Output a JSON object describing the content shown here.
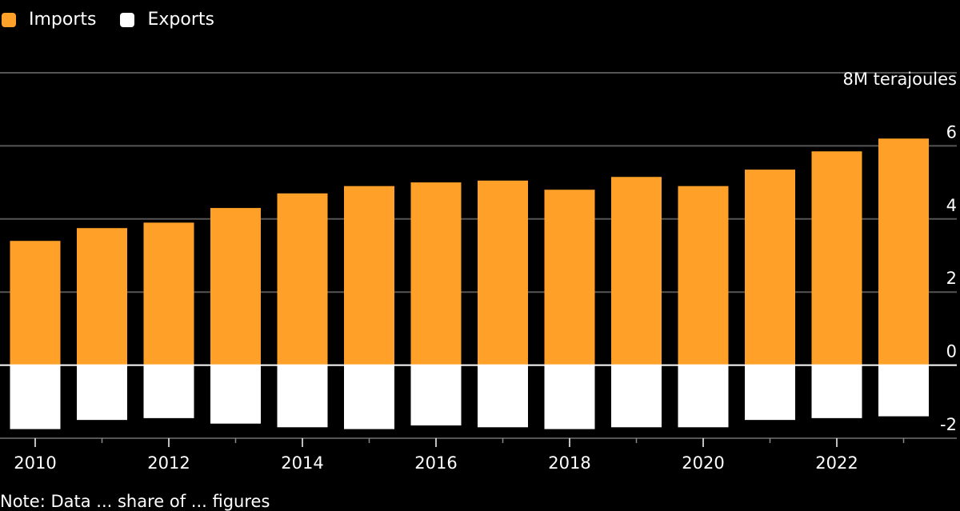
{
  "legend": {
    "items": [
      {
        "label": "Imports",
        "color": "#FFA028"
      },
      {
        "label": "Exports",
        "color": "#FFFFFF"
      }
    ]
  },
  "note": "Note: Data ... share of ... figures",
  "colors": {
    "background": "#000000",
    "imports": "#FFA028",
    "exports": "#FFFFFF",
    "gridline": "#555555",
    "zeroline": "#FFFFFF"
  },
  "chart_data": {
    "type": "bar",
    "title": "",
    "xlabel": "",
    "ylabel": "",
    "unit_label": "8M terajoules",
    "categories": [
      "2010",
      "2011",
      "2012",
      "2013",
      "2014",
      "2015",
      "2016",
      "2017",
      "2018",
      "2019",
      "2020",
      "2021",
      "2022",
      "2023"
    ],
    "x_tick_labels": [
      "2010",
      "2012",
      "2014",
      "2016",
      "2018",
      "2020",
      "2022"
    ],
    "y_tick_labels": [
      "-2",
      "0",
      "2",
      "4",
      "6"
    ],
    "y_ticks": [
      -2,
      0,
      2,
      4,
      6,
      8
    ],
    "ylim": [
      -2,
      8
    ],
    "grid": true,
    "legend_position": "top-left",
    "series": [
      {
        "name": "Imports",
        "values": [
          3.4,
          3.75,
          3.9,
          4.3,
          4.7,
          4.9,
          5.0,
          5.05,
          4.8,
          5.15,
          4.9,
          5.35,
          5.85,
          6.2
        ]
      },
      {
        "name": "Exports",
        "values": [
          -1.75,
          -1.5,
          -1.45,
          -1.6,
          -1.7,
          -1.75,
          -1.65,
          -1.7,
          -1.75,
          -1.7,
          -1.7,
          -1.5,
          -1.45,
          -1.4
        ]
      }
    ]
  }
}
